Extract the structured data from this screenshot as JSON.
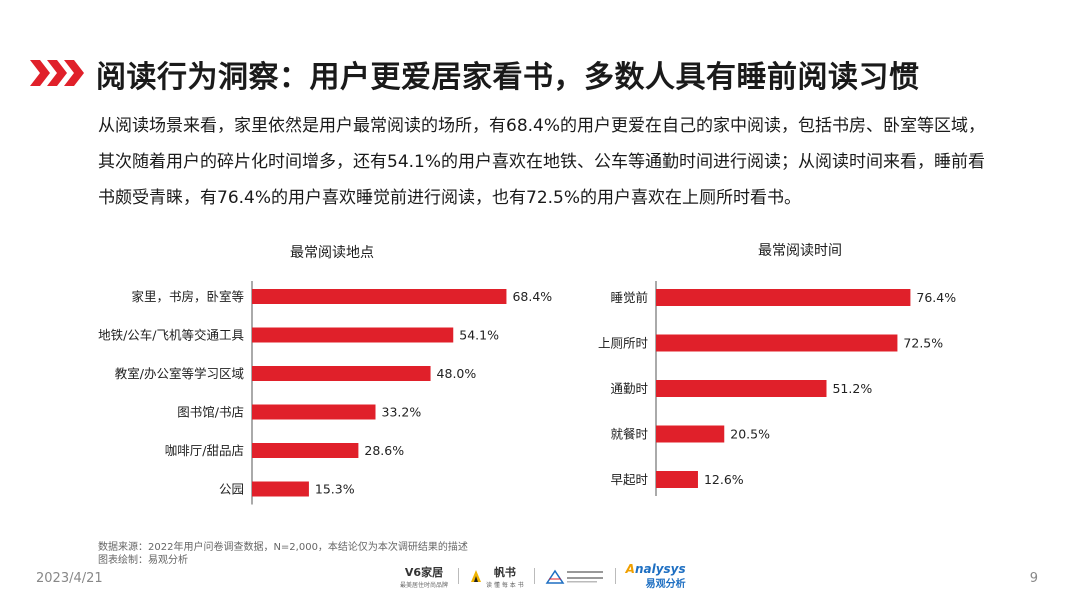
{
  "page": {
    "title": "阅读行为洞察：用户更爱居家看书，多数人具有睡前阅读习惯",
    "intro": "从阅读场景来看，家里依然是用户最常阅读的场所，有68.4%的用户更爱在自己的家中阅读，包括书房、卧室等区域，其次随着用户的碎片化时间增多，还有54.1%的用户喜欢在地铁、公车等通勤时间进行阅读；从阅读时间来看，睡前看书颇受青睐，有76.4%的用户喜欢睡觉前进行阅读，也有72.5%的用户喜欢在上厕所时看书。",
    "source_note": "数据来源：2022年用户问卷调查数据，N=2,000，本结论仅为本次调研结果的描述",
    "chart_note": "图表绘制：易观分析",
    "date": "2023/4/21",
    "page_number": "9",
    "accent_color": "#e0202a",
    "logos": {
      "v6": "V6家居",
      "v6_sub": "最美居住时尚品牌",
      "fanshu": "帆书",
      "fanshu_sub": "读 懂 每 本 书",
      "analysys": "nalysys",
      "analysys_cn": "易观分析"
    }
  },
  "chart_data": [
    {
      "type": "bar",
      "orientation": "horizontal",
      "title": "最常阅读地点",
      "categories": [
        "家里，书房，卧室等",
        "地铁/公车/飞机等交通工具",
        "教室/办公室等学习区域",
        "图书馆/书店",
        "咖啡厅/甜品店",
        "公园"
      ],
      "values": [
        68.4,
        54.1,
        48.0,
        33.2,
        28.6,
        15.3
      ],
      "value_labels": [
        "68.4%",
        "54.1%",
        "48.0%",
        "33.2%",
        "28.6%",
        "15.3%"
      ],
      "unit": "%",
      "xlim": [
        0,
        100
      ],
      "color": "#e0202a"
    },
    {
      "type": "bar",
      "orientation": "horizontal",
      "title": "最常阅读时间",
      "categories": [
        "睡觉前",
        "上厕所时",
        "通勤时",
        "就餐时",
        "早起时"
      ],
      "values": [
        76.4,
        72.5,
        51.2,
        20.5,
        12.6
      ],
      "value_labels": [
        "76.4%",
        "72.5%",
        "51.2%",
        "20.5%",
        "12.6%"
      ],
      "unit": "%",
      "xlim": [
        0,
        100
      ],
      "color": "#e0202a"
    }
  ]
}
